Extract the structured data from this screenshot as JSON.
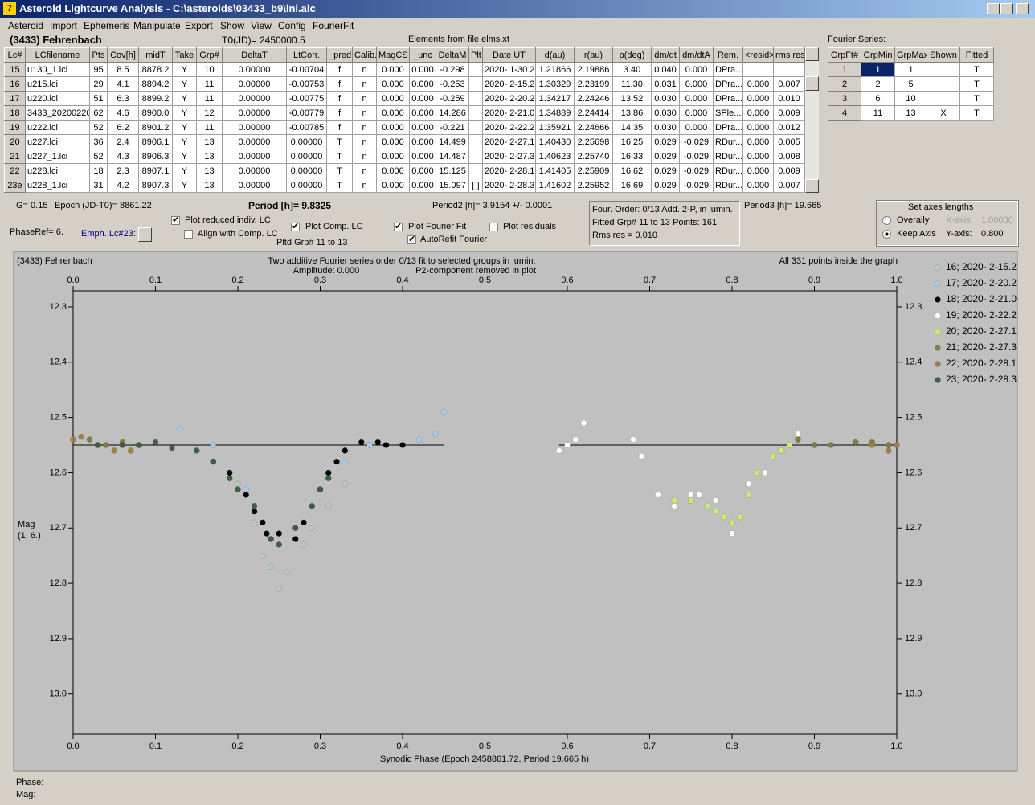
{
  "window": {
    "title": "Asteroid Lightcurve Analysis - C:\\asteroids\\03433_b9\\ini.alc"
  },
  "menu": [
    "Asteroid",
    "Import",
    "Ephemeris",
    "Manipulate",
    "Export",
    "Show",
    "View",
    "Config",
    "FourierFit"
  ],
  "header": {
    "object": "(3433) Fehrenbach",
    "t0": "T0(JD)= 2450000.5",
    "elements": "Elements from file elms.xt"
  },
  "lc_table": {
    "columns": [
      "Lc#",
      "LCfilename",
      "Pts",
      "Cov[h]",
      "midT",
      "Take",
      "Grp#",
      "DeltaT",
      "LtCorr.",
      "_pred.",
      "Calib.",
      "MagCS",
      "_unc",
      "DeltaM",
      "Plt",
      "Date UT",
      "d(au)",
      "r(au)",
      "p(deg)",
      "dm/dt",
      "dm/dtA",
      "Rem.",
      "<resid>",
      "rms res"
    ],
    "rows": [
      [
        "15",
        "u130_1.lci",
        "95",
        "8.5",
        "8878.2",
        "Y",
        "10",
        "0.00000",
        "-0.00704",
        "f",
        "n",
        "0.000",
        "0.000",
        "-0.298",
        null,
        "2020- 1-30.2",
        "1.21866",
        "2.19886",
        "3.40",
        "0.040",
        "0.000",
        "DPra...",
        null,
        null
      ],
      [
        "16",
        "u215.lci",
        "29",
        "4.1",
        "8894.2",
        "Y",
        "11",
        "0.00000",
        "-0.00753",
        "f",
        "n",
        "0.000",
        "0.000",
        "-0.253",
        null,
        "2020- 2-15.2",
        "1.30329",
        "2.23199",
        "11.30",
        "0.031",
        "0.000",
        "DPra...",
        "0.000",
        "0.007"
      ],
      [
        "17",
        "u220.lci",
        "51",
        "6.3",
        "8899.2",
        "Y",
        "11",
        "0.00000",
        "-0.00775",
        "f",
        "n",
        "0.000",
        "0.000",
        "-0.259",
        null,
        "2020- 2-20.2",
        "1.34217",
        "2.24246",
        "13.52",
        "0.030",
        "0.000",
        "DPra...",
        "0.000",
        "0.010"
      ],
      [
        "18",
        "3433_20200220",
        "62",
        "4.6",
        "8900.0",
        "Y",
        "12",
        "0.00000",
        "-0.00779",
        "f",
        "n",
        "0.000",
        "0.000",
        "14.286",
        null,
        "2020- 2-21.0",
        "1.34889",
        "2.24414",
        "13.86",
        "0.030",
        "0.000",
        "SPle...",
        "0.000",
        "0.009"
      ],
      [
        "19",
        "u222.lci",
        "52",
        "6.2",
        "8901.2",
        "Y",
        "11",
        "0.00000",
        "-0.00785",
        "f",
        "n",
        "0.000",
        "0.000",
        "-0.221",
        null,
        "2020- 2-22.2",
        "1.35921",
        "2.24666",
        "14.35",
        "0.030",
        "0.000",
        "DPra...",
        "0.000",
        "0.012"
      ],
      [
        "20",
        "u227.lci",
        "36",
        "2.4",
        "8906.1",
        "Y",
        "13",
        "0.00000",
        "0.00000",
        "T",
        "n",
        "0.000",
        "0.000",
        "14.499",
        null,
        "2020- 2-27.1",
        "1.40430",
        "2.25698",
        "16.25",
        "0.029",
        "-0.029",
        "RDur...",
        "0.000",
        "0.005"
      ],
      [
        "21",
        "u227_1.lci",
        "52",
        "4.3",
        "8906.3",
        "Y",
        "13",
        "0.00000",
        "0.00000",
        "T",
        "n",
        "0.000",
        "0.000",
        "14.487",
        null,
        "2020- 2-27.3",
        "1.40623",
        "2.25740",
        "16.33",
        "0.029",
        "-0.029",
        "RDur...",
        "0.000",
        "0.008"
      ],
      [
        "22",
        "u228.lci",
        "18",
        "2.3",
        "8907.1",
        "Y",
        "13",
        "0.00000",
        "0.00000",
        "T",
        "n",
        "0.000",
        "0.000",
        "15.125",
        null,
        "2020- 2-28.1",
        "1.41405",
        "2.25909",
        "16.62",
        "0.029",
        "-0.029",
        "RDur...",
        "0.000",
        "0.009"
      ],
      [
        "23e",
        "u228_1.lci",
        "31",
        "4.2",
        "8907.3",
        "Y",
        "13",
        "0.00000",
        "0.00000",
        "T",
        "n",
        "0.000",
        "0.000",
        "15.097",
        "[ ]",
        "2020- 2-28.3",
        "1.41602",
        "2.25952",
        "16.69",
        "0.029",
        "-0.029",
        "RDur...",
        "0.000",
        "0.007"
      ]
    ]
  },
  "fourier_table": {
    "title": "Fourier Series:",
    "columns": [
      "GrpFt#",
      "GrpMin",
      "GrpMax",
      "Shown",
      "Fitted"
    ],
    "rows": [
      [
        "1",
        "1",
        "1",
        null,
        "T"
      ],
      [
        "2",
        "2",
        "5",
        null,
        "T"
      ],
      [
        "3",
        "6",
        "10",
        null,
        "T"
      ],
      [
        "4",
        "11",
        "13",
        "X",
        "T"
      ]
    ],
    "selected_cell": [
      0,
      1
    ]
  },
  "info": {
    "g": "G= 0.15",
    "epoch": "Epoch (JD-T0)= 8861.22",
    "period": "Period [h]= 9.8325",
    "period2": "Period2 [h]= 3.9154 +/- 0.0001",
    "period3": "Period3 [h]= 19.665",
    "phase_ref": "PhaseRef= 6.",
    "emph": "Emph. Lc#23:",
    "pltd_grp": "Pltd Grp#  11 to  13",
    "fit_box": [
      "Four. Order:  0/13    Add. 2-P, in lumin.",
      "Fitted Grp# 11 to 13 Points: 161",
      "Rms res     = 0.010"
    ]
  },
  "checkboxes": [
    {
      "label": "Plot reduced indiv. LC",
      "checked": true
    },
    {
      "label": "Align with Comp. LC",
      "checked": false
    },
    {
      "label": "Plot Comp. LC",
      "checked": true
    },
    {
      "label": "Plot Fourier Fit",
      "checked": true
    },
    {
      "label": "AutoRefit Fourier",
      "checked": true
    },
    {
      "label": "Plot residuals",
      "checked": false
    }
  ],
  "axes_box": {
    "title": "Set axes lengths",
    "options": [
      {
        "label": "Overally",
        "selected": false,
        "field": "X-axis:",
        "value": "1.00000"
      },
      {
        "label": "Keep Axis",
        "selected": true,
        "field": "Y-axis:",
        "value": "0.800"
      }
    ]
  },
  "chart_data": {
    "type": "scatter",
    "title": "(3433) Fehrenbach",
    "subtitle": "Two additive Fourier series order 0/13 fit to selected groups in lumin.",
    "annotations": [
      "Amplitude: 0.000",
      "P2-component removed in plot",
      "All 331 points inside the graph"
    ],
    "xlabel": "Synodic Phase (Epoch 2458861.72, Period 19.665 h)",
    "ylabel": [
      "Mag",
      "(1, 6.)"
    ],
    "xlim": [
      0,
      1
    ],
    "ylim": [
      13.073,
      12.271
    ],
    "xticks": [
      {
        "value": 0,
        "label": "0.0"
      },
      0.1,
      0.2,
      0.3,
      0.4,
      0.5,
      0.6,
      0.7,
      0.8,
      0.9,
      {
        "value": 1,
        "label": "1.0"
      }
    ],
    "yticks": [
      12.3,
      12.4,
      12.5,
      12.6,
      12.7,
      12.8,
      12.9,
      {
        "value": 13,
        "label": "13.0"
      }
    ],
    "series": [
      {
        "name": "16; 2020- 2-15.2",
        "color": "#b4cdb4",
        "x": [
          0.2,
          0.22,
          0.23,
          0.24,
          0.25,
          0.26,
          0.28,
          0.29,
          0.31,
          0.33,
          0.36
        ],
        "values": [
          12.62,
          12.69,
          12.75,
          12.77,
          12.81,
          12.78,
          12.73,
          12.7,
          12.66,
          12.62,
          12.55
        ]
      },
      {
        "name": "17; 2020- 2-20.2",
        "color": "#a8c8ec",
        "x": [
          0.13,
          0.17,
          0.21,
          0.23,
          0.33,
          0.36,
          0.42,
          0.44,
          0.45
        ],
        "values": [
          12.52,
          12.55,
          12.63,
          12.69,
          12.58,
          12.55,
          12.54,
          12.53,
          12.49
        ]
      },
      {
        "name": "18; 2020- 2-21.0",
        "color": "#000000",
        "x": [
          0.17,
          0.19,
          0.21,
          0.22,
          0.23,
          0.235,
          0.24,
          0.25,
          0.27,
          0.28,
          0.3,
          0.31,
          0.32,
          0.33,
          0.35,
          0.37,
          0.38,
          0.4
        ],
        "values": [
          12.58,
          12.6,
          12.64,
          12.67,
          12.69,
          12.71,
          12.72,
          12.71,
          12.72,
          12.69,
          12.63,
          12.6,
          12.58,
          12.56,
          12.545,
          12.545,
          12.55,
          12.55
        ]
      },
      {
        "name": "19; 2020- 2-22.2",
        "color": "#ffffff",
        "x": [
          0.59,
          0.6,
          0.61,
          0.62,
          0.68,
          0.69,
          0.71,
          0.73,
          0.75,
          0.76,
          0.78,
          0.8,
          0.82,
          0.84,
          0.86,
          0.88,
          0.9
        ],
        "values": [
          12.56,
          12.55,
          12.54,
          12.51,
          12.54,
          12.57,
          12.64,
          12.66,
          12.64,
          12.64,
          12.65,
          12.71,
          12.62,
          12.6,
          12.56,
          12.53,
          12.55
        ]
      },
      {
        "name": "20; 2020- 2-27.1",
        "color": "#c6f06e",
        "x": [
          0.73,
          0.75,
          0.77,
          0.78,
          0.79,
          0.8,
          0.81,
          0.82,
          0.83,
          0.85,
          0.86,
          0.87,
          0.88
        ],
        "values": [
          12.65,
          12.65,
          12.66,
          12.67,
          12.68,
          12.69,
          12.68,
          12.64,
          12.6,
          12.57,
          12.56,
          12.55,
          12.54
        ]
      },
      {
        "name": "21; 2020- 2-27.3",
        "color": "#7f7f3e",
        "x": [
          0.02,
          0.04,
          0.06,
          0.08,
          0.88,
          0.9,
          0.92,
          0.95,
          0.97,
          0.99
        ],
        "values": [
          12.54,
          12.55,
          12.545,
          12.55,
          12.54,
          12.55,
          12.55,
          12.545,
          12.545,
          12.55
        ]
      },
      {
        "name": "22; 2020- 2-28.1",
        "color": "#a08048",
        "x": [
          0,
          0.01,
          0.03,
          0.05,
          0.07,
          0.97,
          0.99,
          1
        ],
        "values": [
          12.54,
          12.535,
          12.55,
          12.56,
          12.56,
          12.55,
          12.56,
          12.55
        ]
      },
      {
        "name": "23; 2020- 2-28.3",
        "color": "#3f6040",
        "x": [
          0.03,
          0.06,
          0.08,
          0.1,
          0.12,
          0.15,
          0.17,
          0.19,
          0.2,
          0.22,
          0.24,
          0.25,
          0.27,
          0.29,
          0.3,
          0.31
        ],
        "values": [
          12.55,
          12.55,
          12.55,
          12.545,
          12.555,
          12.56,
          12.58,
          12.61,
          12.63,
          12.66,
          12.72,
          12.73,
          12.7,
          12.66,
          12.63,
          12.61
        ]
      }
    ],
    "fit_line": {
      "color": "#000000",
      "segments": [
        {
          "x": [
            0,
            0.45
          ],
          "values": [
            12.55,
            12.55
          ]
        },
        {
          "x": [
            0.59,
            1
          ],
          "values": [
            12.55,
            12.55
          ]
        }
      ]
    }
  },
  "status": [
    "Phase:",
    "Mag:"
  ]
}
